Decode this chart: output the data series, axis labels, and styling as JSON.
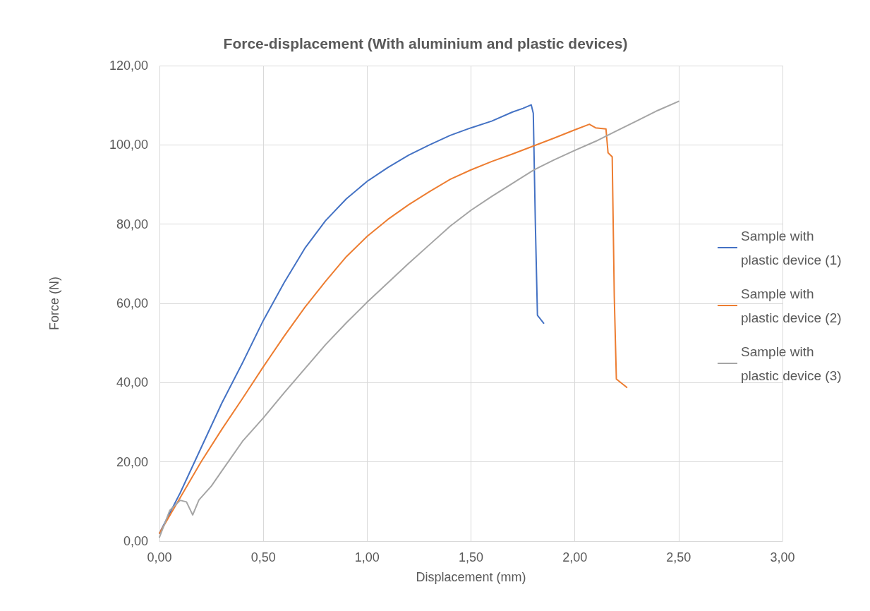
{
  "chart_data": {
    "type": "line",
    "title": "Force-displacement (With aluminium and plastic devices)",
    "xlabel": "Displacement (mm)",
    "ylabel": "Force (N)",
    "xlim": [
      0,
      3
    ],
    "xticks": [
      {
        "value": 0,
        "label": "0,00"
      },
      {
        "value": 0.5,
        "label": "0,50"
      },
      {
        "value": 1,
        "label": "1,00"
      },
      {
        "value": 1.5,
        "label": "1,50"
      },
      {
        "value": 2,
        "label": "2,00"
      },
      {
        "value": 2.5,
        "label": "2,50"
      },
      {
        "value": 3,
        "label": "3,00"
      }
    ],
    "ylim": [
      0,
      120
    ],
    "yticks": [
      {
        "value": 0,
        "label": "0,00"
      },
      {
        "value": 20,
        "label": "20,00"
      },
      {
        "value": 40,
        "label": "40,00"
      },
      {
        "value": 60,
        "label": "60,00"
      },
      {
        "value": 80,
        "label": "80,00"
      },
      {
        "value": 100,
        "label": "100,00"
      },
      {
        "value": 120,
        "label": "120,00"
      }
    ],
    "grid": true,
    "legend": "right",
    "marker": "none",
    "line_style": "solid",
    "series": [
      {
        "name": "Sample with plastic device (1)",
        "color": "#4472c4",
        "x": [
          0,
          0.1,
          0.2,
          0.3,
          0.4,
          0.5,
          0.6,
          0.7,
          0.8,
          0.9,
          1.0,
          1.1,
          1.2,
          1.3,
          1.4,
          1.5,
          1.6,
          1.7,
          1.75,
          1.79,
          1.8,
          1.81,
          1.82,
          1.85
        ],
        "values": [
          2,
          12.2,
          23.5,
          34.8,
          45,
          55.7,
          65.2,
          73.9,
          80.9,
          86.4,
          90.8,
          94.3,
          97.4,
          100,
          102.4,
          104.3,
          106,
          108.3,
          109.2,
          110.1,
          108,
          80,
          57,
          55
        ]
      },
      {
        "name": "Sample with plastic device (2)",
        "color": "#ed7d31",
        "x": [
          0,
          0.1,
          0.2,
          0.3,
          0.4,
          0.5,
          0.6,
          0.7,
          0.8,
          0.9,
          1.0,
          1.1,
          1.2,
          1.3,
          1.4,
          1.5,
          1.6,
          1.7,
          1.8,
          1.9,
          2.0,
          2.07,
          2.1,
          2.15,
          2.16,
          2.18,
          2.19,
          2.2,
          2.25
        ],
        "values": [
          2,
          11,
          20,
          28.2,
          36,
          44,
          51.7,
          59,
          65.6,
          71.8,
          76.9,
          81.2,
          84.9,
          88.2,
          91.3,
          93.7,
          95.8,
          97.7,
          99.7,
          101.7,
          103.8,
          105.2,
          104.3,
          104,
          98,
          97,
          61.7,
          40.9,
          38.8
        ]
      },
      {
        "name": "Sample with plastic device (3)",
        "color": "#a5a5a5",
        "x": [
          0,
          0.05,
          0.1,
          0.13,
          0.16,
          0.19,
          0.25,
          0.3,
          0.4,
          0.5,
          0.6,
          0.7,
          0.8,
          0.9,
          1.0,
          1.1,
          1.2,
          1.3,
          1.4,
          1.5,
          1.6,
          1.7,
          1.8,
          1.9,
          2.0,
          2.1,
          2.2,
          2.3,
          2.4,
          2.5
        ],
        "values": [
          1,
          7.8,
          10.3,
          9.9,
          6.6,
          10.4,
          13.9,
          17.7,
          25.2,
          31.1,
          37.4,
          43.5,
          49.6,
          55.1,
          60.3,
          65.2,
          70.1,
          74.8,
          79.5,
          83.5,
          87,
          90.3,
          93.6,
          96.2,
          98.6,
          100.9,
          103.5,
          106.1,
          108.7,
          111
        ]
      }
    ]
  }
}
